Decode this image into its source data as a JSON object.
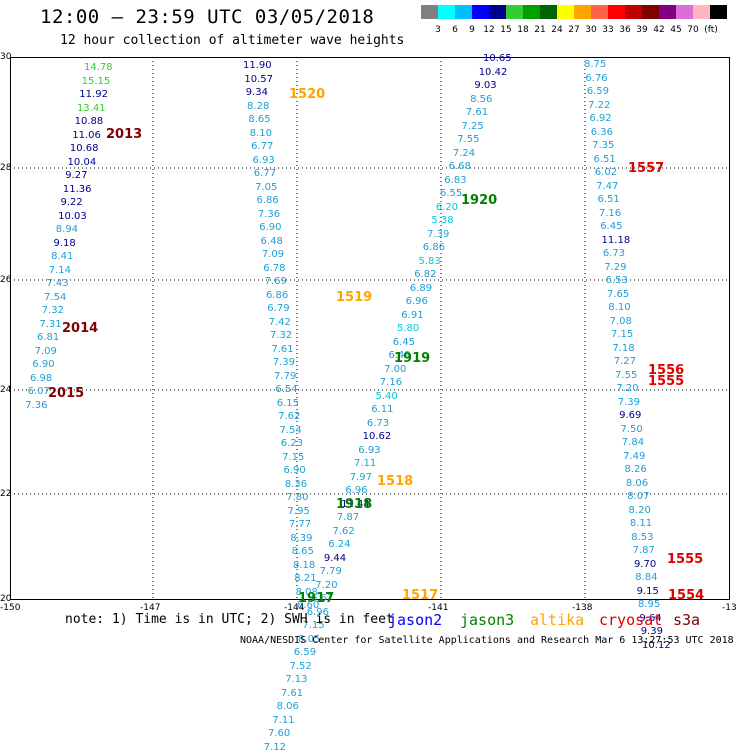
{
  "header": {
    "title": "12:00 – 23:59 UTC 03/05/2018",
    "subtitle": "12 hour collection of altimeter wave heights"
  },
  "legend": {
    "unit_label": "(ft)",
    "items": [
      {
        "label": "",
        "color": "#808080"
      },
      {
        "label": "3",
        "color": "#00ffff"
      },
      {
        "label": "6",
        "color": "#00bfff"
      },
      {
        "label": "9",
        "color": "#0000ff"
      },
      {
        "label": "12",
        "color": "#00008b"
      },
      {
        "label": "15",
        "color": "#32cd32"
      },
      {
        "label": "18",
        "color": "#00a000"
      },
      {
        "label": "21",
        "color": "#006400"
      },
      {
        "label": "24",
        "color": "#ffff00"
      },
      {
        "label": "27",
        "color": "#ffa500"
      },
      {
        "label": "30",
        "color": "#ff6347"
      },
      {
        "label": "33",
        "color": "#ff0000"
      },
      {
        "label": "36",
        "color": "#c00000"
      },
      {
        "label": "39",
        "color": "#800000"
      },
      {
        "label": "42",
        "color": "#800080"
      },
      {
        "label": "45",
        "color": "#da70d6"
      },
      {
        "label": "70",
        "color": "#ffb6c1"
      },
      {
        "label": "(ft)",
        "color": "#000000"
      }
    ]
  },
  "axes": {
    "lat_ticks": [
      "30",
      "28",
      "26",
      "24",
      "22",
      "20"
    ],
    "lon_ticks": [
      "-150",
      "-147",
      "-144",
      "-141",
      "-138",
      "-13"
    ]
  },
  "colors": {
    "light": "#1e9fd6",
    "cyan": "#00c8d8",
    "dark": "#00008b",
    "green_light": "#32cd32",
    "green_dark": "#008000",
    "orange": "#ffa500",
    "maroon": "#800000",
    "red": "#e00000"
  },
  "tracks": {
    "a": [
      {
        "v": "14.78",
        "c": "green_light"
      },
      {
        "v": "15.15",
        "c": "green_light"
      },
      {
        "v": "11.92",
        "c": "dark"
      },
      {
        "v": "13.41",
        "c": "green_light"
      },
      {
        "v": "10.88",
        "c": "dark"
      },
      {
        "v": "11.06",
        "c": "dark"
      },
      {
        "v": "10.68",
        "c": "dark"
      },
      {
        "v": "10.04",
        "c": "dark"
      },
      {
        "v": "9.27",
        "c": "dark"
      },
      {
        "v": "11.36",
        "c": "dark"
      },
      {
        "v": "9.22",
        "c": "dark"
      },
      {
        "v": "10.03",
        "c": "dark"
      },
      {
        "v": "8.94",
        "c": "light"
      },
      {
        "v": "9.18",
        "c": "dark"
      },
      {
        "v": "8.41",
        "c": "light"
      },
      {
        "v": "7.14",
        "c": "light"
      },
      {
        "v": "7.43",
        "c": "light"
      },
      {
        "v": "7.54",
        "c": "light"
      },
      {
        "v": "7.32",
        "c": "light"
      },
      {
        "v": "7.31",
        "c": "light"
      },
      {
        "v": "6.81",
        "c": "light"
      },
      {
        "v": "7.09",
        "c": "light"
      },
      {
        "v": "6.90",
        "c": "light"
      },
      {
        "v": "6.98",
        "c": "light"
      },
      {
        "v": "6.07",
        "c": "light"
      },
      {
        "v": "7.36",
        "c": "light"
      }
    ],
    "b": [
      {
        "v": "11.90",
        "c": "dark"
      },
      {
        "v": "10.57",
        "c": "dark"
      },
      {
        "v": "9.34",
        "c": "dark"
      },
      {
        "v": "8.28",
        "c": "light"
      },
      {
        "v": "8.65",
        "c": "light"
      },
      {
        "v": "8.10",
        "c": "light"
      },
      {
        "v": "6.77",
        "c": "light"
      },
      {
        "v": "6.93",
        "c": "light"
      },
      {
        "v": "6.77",
        "c": "light"
      },
      {
        "v": "7.05",
        "c": "light"
      },
      {
        "v": "6.86",
        "c": "light"
      },
      {
        "v": "7.36",
        "c": "light"
      },
      {
        "v": "6.90",
        "c": "light"
      },
      {
        "v": "6.48",
        "c": "light"
      },
      {
        "v": "7.09",
        "c": "light"
      },
      {
        "v": "6.78",
        "c": "light"
      },
      {
        "v": "7.69",
        "c": "light"
      },
      {
        "v": "6.86",
        "c": "light"
      },
      {
        "v": "6.79",
        "c": "light"
      },
      {
        "v": "7.42",
        "c": "light"
      },
      {
        "v": "7.32",
        "c": "light"
      },
      {
        "v": "7.61",
        "c": "light"
      },
      {
        "v": "7.39",
        "c": "light"
      },
      {
        "v": "7.79",
        "c": "light"
      },
      {
        "v": "6.54",
        "c": "light"
      },
      {
        "v": "6.15",
        "c": "light"
      },
      {
        "v": "7.62",
        "c": "light"
      },
      {
        "v": "7.54",
        "c": "light"
      },
      {
        "v": "6.23",
        "c": "light"
      },
      {
        "v": "7.15",
        "c": "light"
      },
      {
        "v": "6.90",
        "c": "light"
      },
      {
        "v": "8.36",
        "c": "light"
      },
      {
        "v": "7.80",
        "c": "light"
      },
      {
        "v": "7.95",
        "c": "light"
      },
      {
        "v": "7.77",
        "c": "light"
      },
      {
        "v": "8.39",
        "c": "light"
      },
      {
        "v": "8.65",
        "c": "light"
      },
      {
        "v": "8.18",
        "c": "light"
      },
      {
        "v": "8.21",
        "c": "light"
      },
      {
        "v": "8.08",
        "c": "light"
      },
      {
        "v": "8.60",
        "c": "light"
      }
    ],
    "c": [
      {
        "v": "10.65",
        "c": "dark"
      },
      {
        "v": "10.42",
        "c": "dark"
      },
      {
        "v": "9.03",
        "c": "dark"
      },
      {
        "v": "8.56",
        "c": "light"
      },
      {
        "v": "7.61",
        "c": "light"
      },
      {
        "v": "7.25",
        "c": "light"
      },
      {
        "v": "7.55",
        "c": "light"
      },
      {
        "v": "7.24",
        "c": "light"
      },
      {
        "v": "6.68",
        "c": "light"
      },
      {
        "v": "6.83",
        "c": "light"
      },
      {
        "v": "6.55",
        "c": "light"
      },
      {
        "v": "6.20",
        "c": "cyan"
      },
      {
        "v": "5.38",
        "c": "cyan"
      },
      {
        "v": "7.39",
        "c": "light"
      },
      {
        "v": "6.86",
        "c": "light"
      },
      {
        "v": "5.83",
        "c": "cyan"
      },
      {
        "v": "6.82",
        "c": "light"
      },
      {
        "v": "6.89",
        "c": "light"
      },
      {
        "v": "6.96",
        "c": "light"
      },
      {
        "v": "6.91",
        "c": "light"
      },
      {
        "v": "5.80",
        "c": "cyan"
      },
      {
        "v": "6.45",
        "c": "light"
      },
      {
        "v": "6.49",
        "c": "light"
      },
      {
        "v": "7.00",
        "c": "light"
      },
      {
        "v": "7.16",
        "c": "light"
      },
      {
        "v": "5.40",
        "c": "cyan"
      },
      {
        "v": "6.11",
        "c": "light"
      },
      {
        "v": "6.73",
        "c": "light"
      },
      {
        "v": "10.62",
        "c": "dark"
      },
      {
        "v": "6.93",
        "c": "light"
      },
      {
        "v": "7.11",
        "c": "light"
      },
      {
        "v": "7.97",
        "c": "light"
      },
      {
        "v": "6.96",
        "c": "light"
      },
      {
        "v": "11.44",
        "c": "dark"
      },
      {
        "v": "7.87",
        "c": "light"
      },
      {
        "v": "7.62",
        "c": "light"
      },
      {
        "v": "6.24",
        "c": "light"
      },
      {
        "v": "9.44",
        "c": "dark"
      },
      {
        "v": "7.79",
        "c": "light"
      },
      {
        "v": "7.20",
        "c": "light"
      },
      {
        "v": "6.67",
        "c": "light"
      },
      {
        "v": "6.96",
        "c": "light"
      },
      {
        "v": "7.15",
        "c": "light"
      },
      {
        "v": "8.05",
        "c": "light"
      },
      {
        "v": "6.59",
        "c": "light"
      },
      {
        "v": "7.52",
        "c": "light"
      },
      {
        "v": "7.13",
        "c": "light"
      },
      {
        "v": "7.61",
        "c": "light"
      },
      {
        "v": "8.06",
        "c": "light"
      },
      {
        "v": "7.11",
        "c": "light"
      },
      {
        "v": "7.60",
        "c": "light"
      },
      {
        "v": "7.12",
        "c": "light"
      }
    ],
    "d": [
      {
        "v": "8.75",
        "c": "light"
      },
      {
        "v": "6.76",
        "c": "light"
      },
      {
        "v": "6.59",
        "c": "light"
      },
      {
        "v": "7.22",
        "c": "light"
      },
      {
        "v": "6.92",
        "c": "light"
      },
      {
        "v": "6.36",
        "c": "light"
      },
      {
        "v": "7.35",
        "c": "light"
      },
      {
        "v": "6.51",
        "c": "light"
      },
      {
        "v": "6.02",
        "c": "light"
      },
      {
        "v": "7.47",
        "c": "light"
      },
      {
        "v": "6.51",
        "c": "light"
      },
      {
        "v": "7.16",
        "c": "light"
      },
      {
        "v": "6.45",
        "c": "light"
      },
      {
        "v": "11.18",
        "c": "dark"
      },
      {
        "v": "6.73",
        "c": "light"
      },
      {
        "v": "7.29",
        "c": "light"
      },
      {
        "v": "6.53",
        "c": "light"
      },
      {
        "v": "7.65",
        "c": "light"
      },
      {
        "v": "8.10",
        "c": "light"
      },
      {
        "v": "7.08",
        "c": "light"
      },
      {
        "v": "7.15",
        "c": "light"
      },
      {
        "v": "7.18",
        "c": "light"
      },
      {
        "v": "7.27",
        "c": "light"
      },
      {
        "v": "7.55",
        "c": "light"
      },
      {
        "v": "7.20",
        "c": "light"
      },
      {
        "v": "7.39",
        "c": "light"
      },
      {
        "v": "9.69",
        "c": "dark"
      },
      {
        "v": "7.50",
        "c": "light"
      },
      {
        "v": "7.84",
        "c": "light"
      },
      {
        "v": "7.49",
        "c": "light"
      },
      {
        "v": "8.26",
        "c": "light"
      },
      {
        "v": "8.06",
        "c": "light"
      },
      {
        "v": "8.07",
        "c": "light"
      },
      {
        "v": "8.20",
        "c": "light"
      },
      {
        "v": "8.11",
        "c": "light"
      },
      {
        "v": "8.53",
        "c": "light"
      },
      {
        "v": "7.87",
        "c": "light"
      },
      {
        "v": "9.70",
        "c": "dark"
      },
      {
        "v": "8.84",
        "c": "light"
      },
      {
        "v": "9.15",
        "c": "dark"
      },
      {
        "v": "8.95",
        "c": "light"
      },
      {
        "v": "9.64",
        "c": "dark"
      },
      {
        "v": "9.39",
        "c": "dark"
      },
      {
        "v": "10.12",
        "c": "dark"
      }
    ]
  },
  "pass_labels": [
    {
      "t": "2013",
      "c": "maroon"
    },
    {
      "t": "2014",
      "c": "maroon"
    },
    {
      "t": "2015",
      "c": "maroon"
    },
    {
      "t": "1520",
      "c": "orange"
    },
    {
      "t": "1519",
      "c": "orange"
    },
    {
      "t": "1518",
      "c": "orange"
    },
    {
      "t": "1517",
      "c": "orange"
    },
    {
      "t": "1920",
      "c": "green_dark"
    },
    {
      "t": "1919",
      "c": "green_dark"
    },
    {
      "t": "1918",
      "c": "green_dark"
    },
    {
      "t": "1917",
      "c": "green_dark"
    },
    {
      "t": "1557",
      "c": "red"
    },
    {
      "t": "1556",
      "c": "red"
    },
    {
      "t": "1555",
      "c": "red"
    },
    {
      "t": "1555",
      "c": "red"
    },
    {
      "t": "1554",
      "c": "red"
    }
  ],
  "footer": {
    "note": "note: 1) Time is in UTC; 2) SWH is in feet",
    "satellites": [
      {
        "name": "jason2",
        "color": "#0000ff"
      },
      {
        "name": "jason3",
        "color": "#008000"
      },
      {
        "name": "altika",
        "color": "#ffa500"
      },
      {
        "name": "cryosat",
        "color": "#e00000"
      },
      {
        "name": "s3a",
        "color": "#800000"
      }
    ],
    "credit": "NOAA/NESDIS Center for Satellite Applications and Research   Mar  6 13:27:53 UTC 2018"
  }
}
